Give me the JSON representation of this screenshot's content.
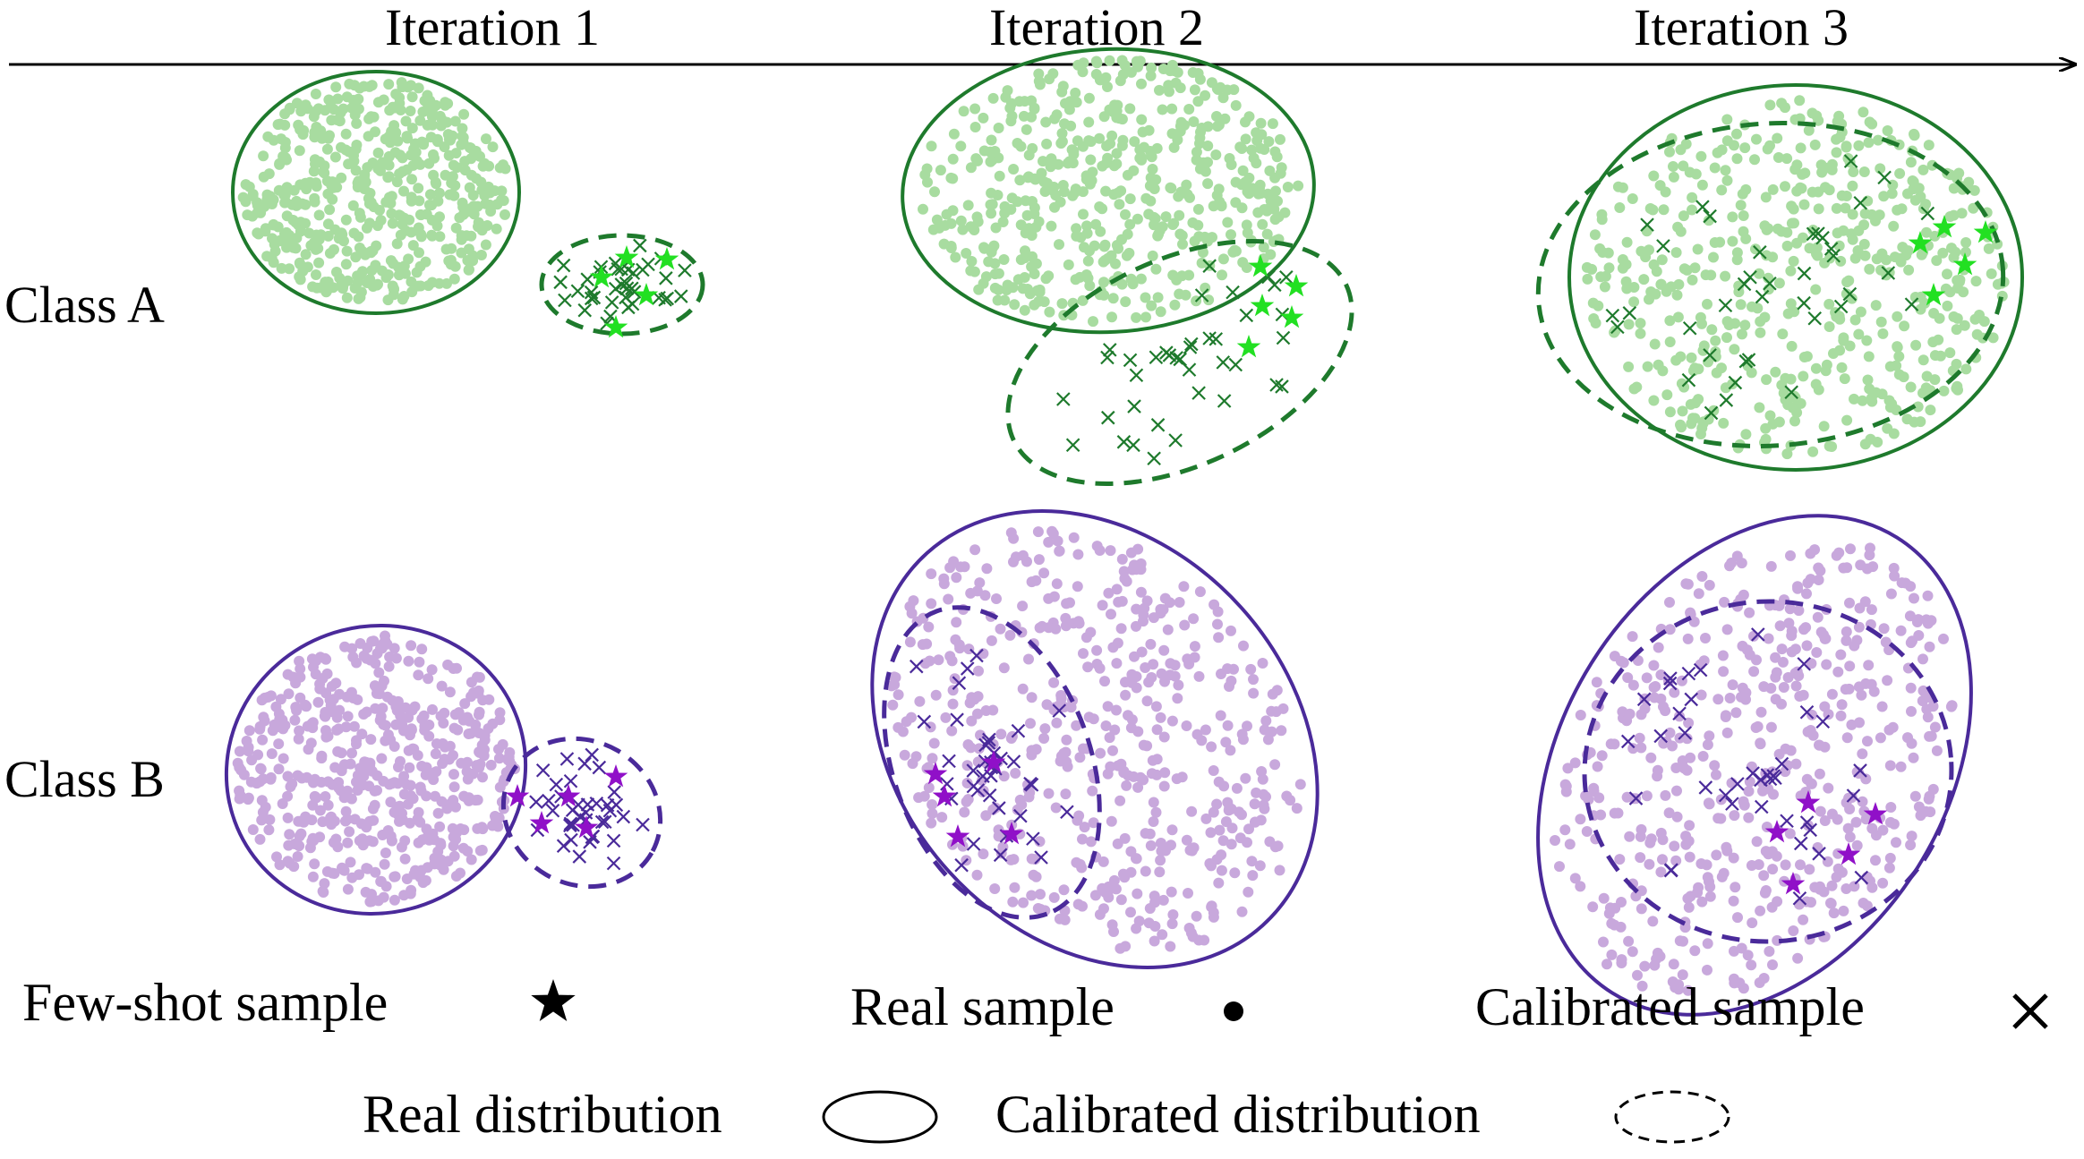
{
  "timeline": {
    "iterations": [
      "Iteration 1",
      "Iteration 2",
      "Iteration 3"
    ]
  },
  "classes": [
    {
      "label": "Class A",
      "color_real": "#a8dca0",
      "color_calibrated": "#1e7a2c",
      "color_fewshot": "#22e022",
      "color_ellipse": "#1e7a2c"
    },
    {
      "label": "Class B",
      "color_real": "#c8a8dc",
      "color_calibrated": "#4a2a9a",
      "color_fewshot": "#9010c8",
      "color_ellipse": "#4a2a9a"
    }
  ],
  "legend": {
    "few_shot": "Few-shot sample",
    "real_sample": "Real sample",
    "calibrated_sample": "Calibrated sample",
    "real_distribution": "Real distribution",
    "calibrated_distribution": "Calibrated distribution"
  }
}
